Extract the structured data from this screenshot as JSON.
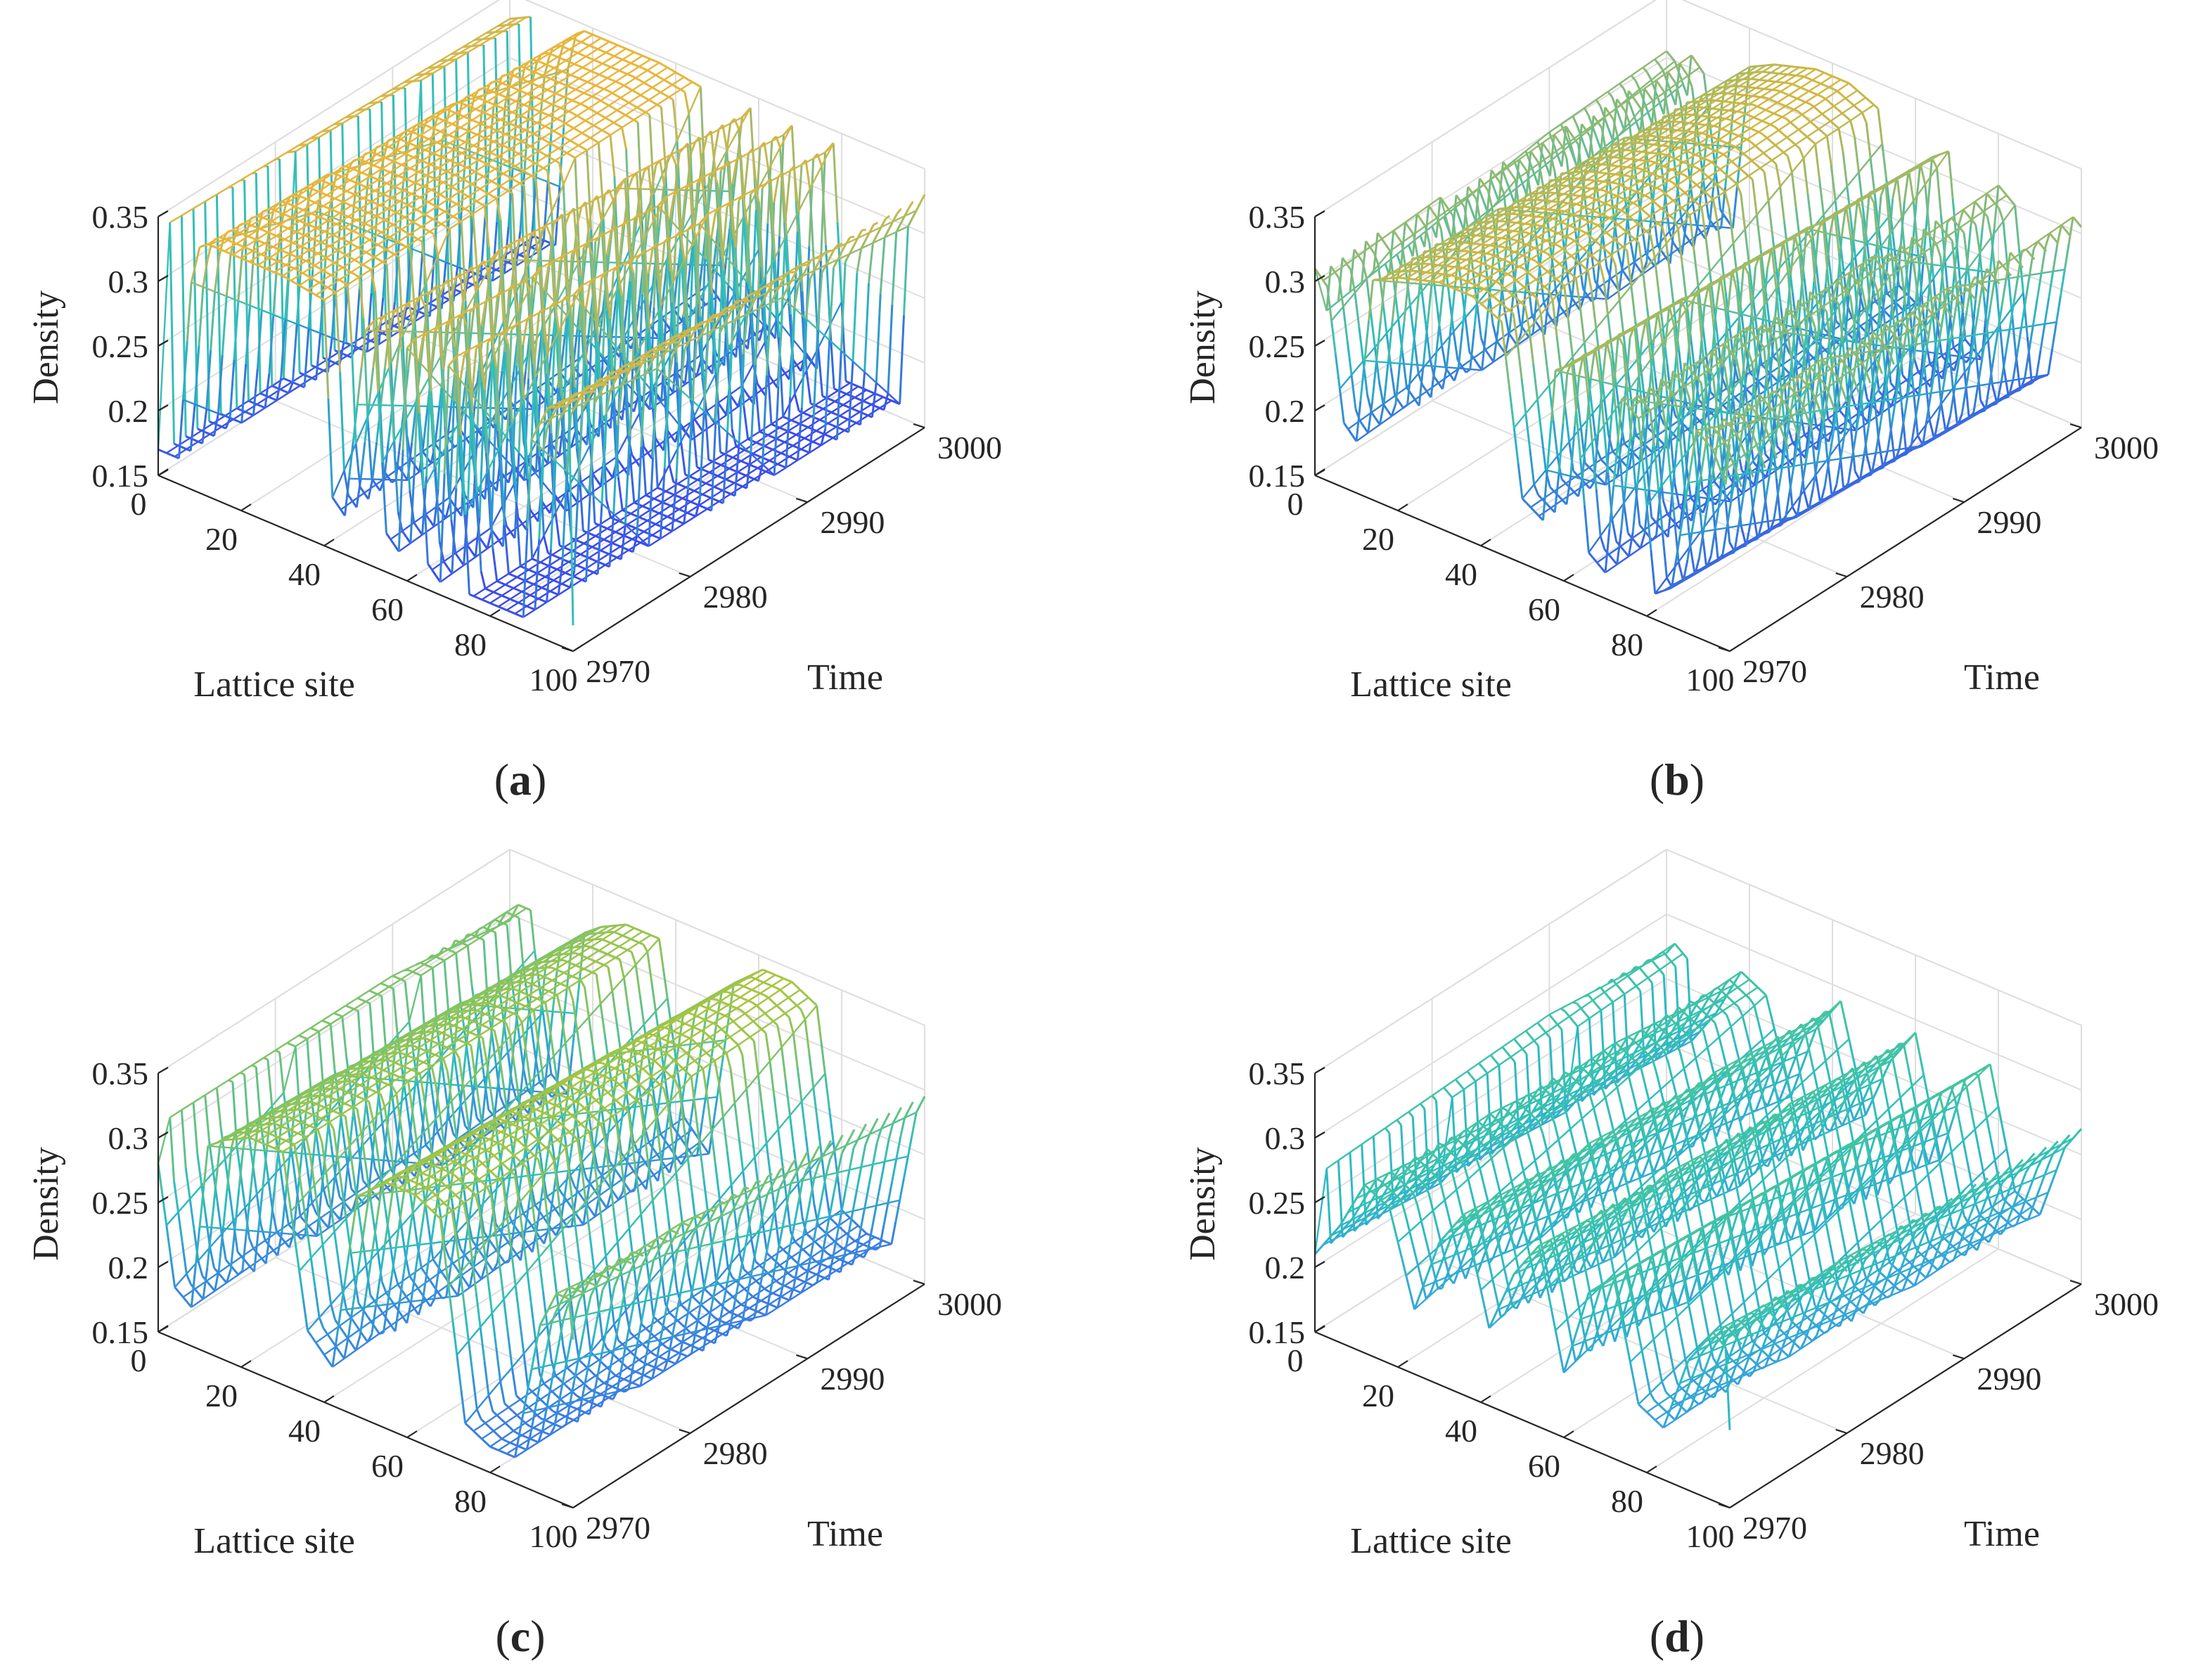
{
  "chart_data": [
    {
      "type": "surface3d",
      "panel": "a",
      "caption_letter": "a",
      "xlabel": "Lattice site",
      "ylabel": "Time",
      "zlabel": "Density",
      "xlim": [
        0,
        100
      ],
      "ylim": [
        2970,
        3000
      ],
      "zlim": [
        0.15,
        0.35
      ],
      "xticks": [
        "0",
        "20",
        "40",
        "60",
        "80",
        "100"
      ],
      "yticks": [
        "2970",
        "2980",
        "2990",
        "3000"
      ],
      "zticks": [
        "0.15",
        "0.2",
        "0.25",
        "0.3",
        "0.35"
      ],
      "profile": {
        "lattice_site": [
          0,
          5,
          8,
          10,
          12,
          30,
          40,
          42,
          45,
          50,
          52,
          55,
          58,
          60,
          62,
          65,
          68,
          70,
          72,
          75,
          82,
          88,
          90,
          94,
          100
        ],
        "density": [
          0.17,
          0.17,
          0.31,
          0.34,
          0.345,
          0.345,
          0.34,
          0.19,
          0.18,
          0.33,
          0.34,
          0.18,
          0.17,
          0.33,
          0.34,
          0.17,
          0.16,
          0.33,
          0.34,
          0.16,
          0.16,
          0.16,
          0.3,
          0.33,
          0.34
        ]
      },
      "phase_drift_sites_per_step": 0.2,
      "wave_color_low": "#3d3ef0",
      "wave_color_high": "#f5b530"
    },
    {
      "type": "surface3d",
      "panel": "b",
      "caption_letter": "b",
      "xlabel": "Lattice site",
      "ylabel": "Time",
      "zlabel": "Density",
      "xlim": [
        0,
        100
      ],
      "ylim": [
        2970,
        3000
      ],
      "zlim": [
        0.15,
        0.35
      ],
      "xticks": [
        "0",
        "20",
        "40",
        "60",
        "80",
        "100"
      ],
      "yticks": [
        "2970",
        "2980",
        "2990",
        "3000"
      ],
      "zticks": [
        "0.15",
        "0.2",
        "0.25",
        "0.3",
        "0.35"
      ],
      "profile": {
        "lattice_site": [
          0,
          3,
          7,
          10,
          14,
          20,
          30,
          38,
          45,
          50,
          55,
          58,
          62,
          66,
          70,
          74,
          78,
          82,
          86,
          92,
          96,
          100
        ],
        "density": [
          0.31,
          0.3,
          0.2,
          0.19,
          0.32,
          0.33,
          0.34,
          0.34,
          0.33,
          0.2,
          0.19,
          0.31,
          0.32,
          0.18,
          0.17,
          0.31,
          0.3,
          0.17,
          0.18,
          0.31,
          0.3,
          0.27
        ]
      },
      "phase_drift_sites_per_step": 0.2,
      "wave_color_low": "#3d48ee",
      "wave_color_high": "#e3b631"
    },
    {
      "type": "surface3d",
      "panel": "c",
      "caption_letter": "c",
      "xlabel": "Lattice site",
      "ylabel": "Time",
      "zlabel": "Density",
      "xlim": [
        0,
        100
      ],
      "ylim": [
        2970,
        3000
      ],
      "zlim": [
        0.15,
        0.35
      ],
      "xticks": [
        "0",
        "20",
        "40",
        "60",
        "80",
        "100"
      ],
      "yticks": [
        "2970",
        "2980",
        "2990",
        "3000"
      ],
      "zticks": [
        "0.15",
        "0.2",
        "0.25",
        "0.3",
        "0.35"
      ],
      "profile": {
        "lattice_site": [
          0,
          4,
          8,
          12,
          16,
          22,
          30,
          36,
          42,
          48,
          55,
          62,
          68,
          74,
          80,
          86,
          92,
          96,
          100
        ],
        "density": [
          0.28,
          0.19,
          0.18,
          0.31,
          0.32,
          0.33,
          0.33,
          0.2,
          0.18,
          0.32,
          0.34,
          0.34,
          0.33,
          0.18,
          0.17,
          0.17,
          0.28,
          0.31,
          0.31
        ]
      },
      "phase_drift_sites_per_step": 0.2,
      "wave_color_low": "#3d6aee",
      "wave_color_high": "#b4c631"
    },
    {
      "type": "surface3d",
      "panel": "d",
      "caption_letter": "d",
      "xlabel": "Lattice site",
      "ylabel": "Time",
      "zlabel": "Density",
      "xlim": [
        0,
        100
      ],
      "ylim": [
        2970,
        3000
      ],
      "zlim": [
        0.15,
        0.35
      ],
      "xticks": [
        "0",
        "20",
        "40",
        "60",
        "80",
        "100"
      ],
      "yticks": [
        "2970",
        "2980",
        "2990",
        "3000"
      ],
      "zticks": [
        "0.15",
        "0.2",
        "0.25",
        "0.3",
        "0.35"
      ],
      "profile": {
        "lattice_site": [
          0,
          6,
          12,
          18,
          24,
          30,
          36,
          42,
          48,
          54,
          60,
          66,
          72,
          78,
          84,
          90,
          96,
          100
        ],
        "density": [
          0.21,
          0.24,
          0.28,
          0.27,
          0.2,
          0.26,
          0.29,
          0.21,
          0.26,
          0.29,
          0.2,
          0.27,
          0.29,
          0.2,
          0.19,
          0.25,
          0.28,
          0.27
        ]
      },
      "phase_drift_sites_per_step": 0.2,
      "wave_color_low": "#3d8fee",
      "wave_color_high": "#6fd06a"
    }
  ]
}
